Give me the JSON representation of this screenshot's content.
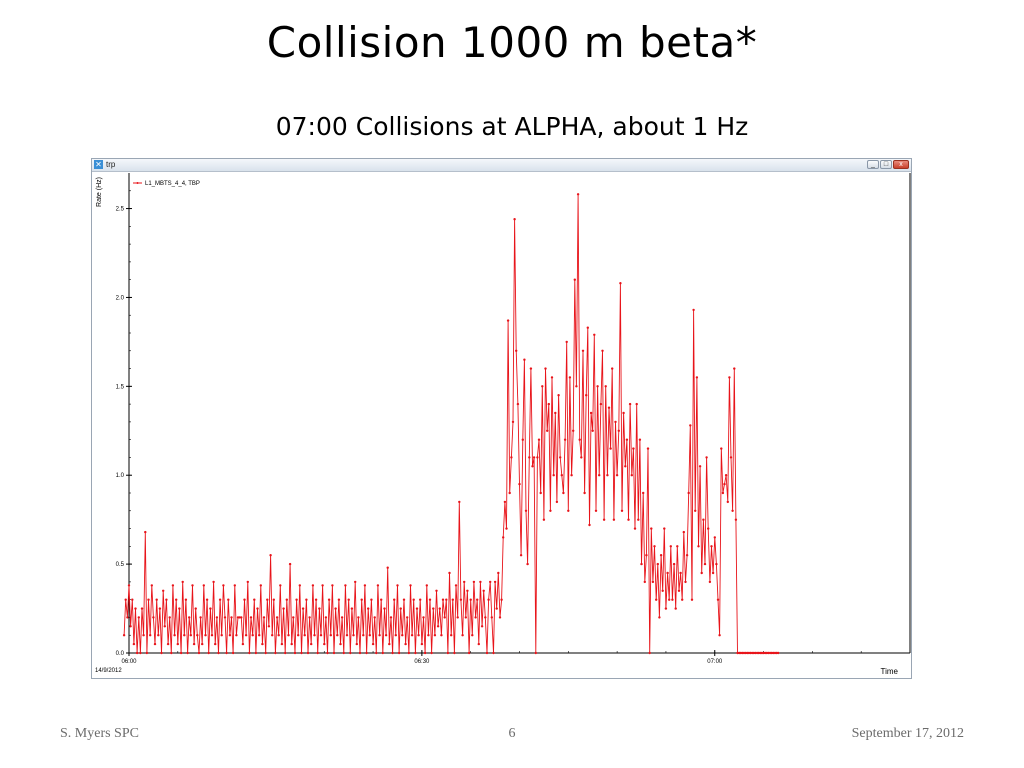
{
  "slide": {
    "title": "Collision 1000 m beta*",
    "subtitle": "07:00 Collisions at ALPHA, about 1 Hz"
  },
  "window": {
    "title": "trp",
    "controls": {
      "minimize": "_",
      "maximize": "□",
      "close": "x"
    },
    "icon": "app-icon"
  },
  "footer": {
    "author": "S. Myers SPC",
    "page_number": "6",
    "date": "September 17, 2012"
  },
  "chart_data": {
    "type": "line",
    "title": "",
    "xlabel": "Time",
    "ylabel": "Rate (Hz)",
    "date_label": "14/9/2012",
    "xlim": [
      "06:00",
      "07:20"
    ],
    "ylim": [
      0,
      2.7
    ],
    "x_ticks": [
      "06:00",
      "06:30",
      "07:00"
    ],
    "y_ticks": [
      "0.0",
      "0.5",
      "1.0",
      "1.5",
      "2.0",
      "2.5"
    ],
    "legend_position": "top-left",
    "line_color": "#e8141a",
    "series": [
      {
        "name": "L1_MBTS_4_4, TBP",
        "time_start": "05:59:30",
        "time_step_seconds": 10,
        "values": [
          0.1,
          0.3,
          0.2,
          0.38,
          0.15,
          0.3,
          0.05,
          0.25,
          0.0,
          0.2,
          0.0,
          0.25,
          0.1,
          0.68,
          0.0,
          0.3,
          0.1,
          0.38,
          0.2,
          0.05,
          0.3,
          0.1,
          0.25,
          0.0,
          0.35,
          0.15,
          0.3,
          0.05,
          0.2,
          0.0,
          0.38,
          0.1,
          0.3,
          0.05,
          0.25,
          0.0,
          0.4,
          0.1,
          0.3,
          0.0,
          0.2,
          0.1,
          0.38,
          0.05,
          0.25,
          0.1,
          0.0,
          0.2,
          0.05,
          0.38,
          0.1,
          0.3,
          0.0,
          0.25,
          0.1,
          0.4,
          0.05,
          0.2,
          0.0,
          0.3,
          0.1,
          0.38,
          0.2,
          0.0,
          0.3,
          0.1,
          0.2,
          0.0,
          0.38,
          0.1,
          0.2,
          0.2,
          0.2,
          0.05,
          0.3,
          0.1,
          0.4,
          0.0,
          0.2,
          0.1,
          0.3,
          0.0,
          0.25,
          0.1,
          0.38,
          0.05,
          0.2,
          0.0,
          0.3,
          0.15,
          0.55,
          0.1,
          0.3,
          0.0,
          0.2,
          0.1,
          0.38,
          0.05,
          0.25,
          0.0,
          0.3,
          0.1,
          0.5,
          0.05,
          0.2,
          0.0,
          0.3,
          0.1,
          0.38,
          0.0,
          0.25,
          0.1,
          0.3,
          0.0,
          0.2,
          0.05,
          0.38,
          0.1,
          0.3,
          0.0,
          0.25,
          0.1,
          0.38,
          0.05,
          0.2,
          0.0,
          0.3,
          0.1,
          0.38,
          0.0,
          0.25,
          0.1,
          0.3,
          0.05,
          0.2,
          0.0,
          0.38,
          0.1,
          0.3,
          0.0,
          0.25,
          0.1,
          0.4,
          0.05,
          0.2,
          0.0,
          0.3,
          0.1,
          0.38,
          0.0,
          0.25,
          0.1,
          0.3,
          0.05,
          0.2,
          0.0,
          0.38,
          0.1,
          0.3,
          0.0,
          0.25,
          0.1,
          0.48,
          0.05,
          0.2,
          0.0,
          0.3,
          0.1,
          0.38,
          0.0,
          0.25,
          0.1,
          0.3,
          0.05,
          0.2,
          0.0,
          0.38,
          0.1,
          0.3,
          0.0,
          0.25,
          0.1,
          0.3,
          0.05,
          0.2,
          0.0,
          0.38,
          0.1,
          0.3,
          0.0,
          0.25,
          0.1,
          0.35,
          0.15,
          0.25,
          0.1,
          0.3,
          0.2,
          0.3,
          0.0,
          0.45,
          0.1,
          0.3,
          0.0,
          0.38,
          0.2,
          0.85,
          0.3,
          0.1,
          0.4,
          0.2,
          0.35,
          0.0,
          0.3,
          0.1,
          0.4,
          0.2,
          0.3,
          0.05,
          0.4,
          0.15,
          0.35,
          0.2,
          0.0,
          0.3,
          0.4,
          0.2,
          0.0,
          0.4,
          0.25,
          0.45,
          0.2,
          0.3,
          0.65,
          0.85,
          0.7,
          1.87,
          0.9,
          1.1,
          1.3,
          2.44,
          1.7,
          1.4,
          0.95,
          0.55,
          1.2,
          1.65,
          0.8,
          0.5,
          1.1,
          1.6,
          1.05,
          1.1,
          0.0,
          1.1,
          1.2,
          0.9,
          1.5,
          0.75,
          1.6,
          1.25,
          1.4,
          0.8,
          1.55,
          1.0,
          1.35,
          0.85,
          1.45,
          1.1,
          1.0,
          0.9,
          1.2,
          1.75,
          0.8,
          1.55,
          1.0,
          1.25,
          2.1,
          1.5,
          2.58,
          1.2,
          1.1,
          1.7,
          0.9,
          1.45,
          1.83,
          0.72,
          1.35,
          1.25,
          1.79,
          0.8,
          1.5,
          1.0,
          1.4,
          1.7,
          0.75,
          1.5,
          1.0,
          1.38,
          1.15,
          1.6,
          0.75,
          1.3,
          1.0,
          1.25,
          2.08,
          0.8,
          1.35,
          1.05,
          1.2,
          0.75,
          1.4,
          1.0,
          1.15,
          0.7,
          1.4,
          0.75,
          1.2,
          0.5,
          0.9,
          0.4,
          0.55,
          1.15,
          0.0,
          0.7,
          0.4,
          0.6,
          0.3,
          0.5,
          0.2,
          0.55,
          0.35,
          0.7,
          0.25,
          0.45,
          0.3,
          0.6,
          0.3,
          0.5,
          0.25,
          0.6,
          0.35,
          0.45,
          0.3,
          0.68,
          0.4,
          0.55,
          0.9,
          1.28,
          0.3,
          1.93,
          0.8,
          1.55,
          0.6,
          1.05,
          0.45,
          0.75,
          0.5,
          1.1,
          0.7,
          0.4,
          0.6,
          0.45,
          0.65,
          0.5,
          0.3,
          0.1,
          1.15,
          0.9,
          0.95,
          1.0,
          0.85,
          1.55,
          1.1,
          0.8,
          1.6,
          0.75,
          0.0,
          0.0,
          0.0,
          0.0,
          0.0,
          0.0,
          0.0,
          0.0,
          0.0,
          0.0,
          0.0,
          0.0,
          0.0,
          0.0,
          0.0,
          0.0,
          0.0,
          0.0,
          0.0,
          0.0,
          0.0,
          0.0,
          0.0,
          0.0,
          0.0,
          0.0
        ]
      }
    ]
  }
}
